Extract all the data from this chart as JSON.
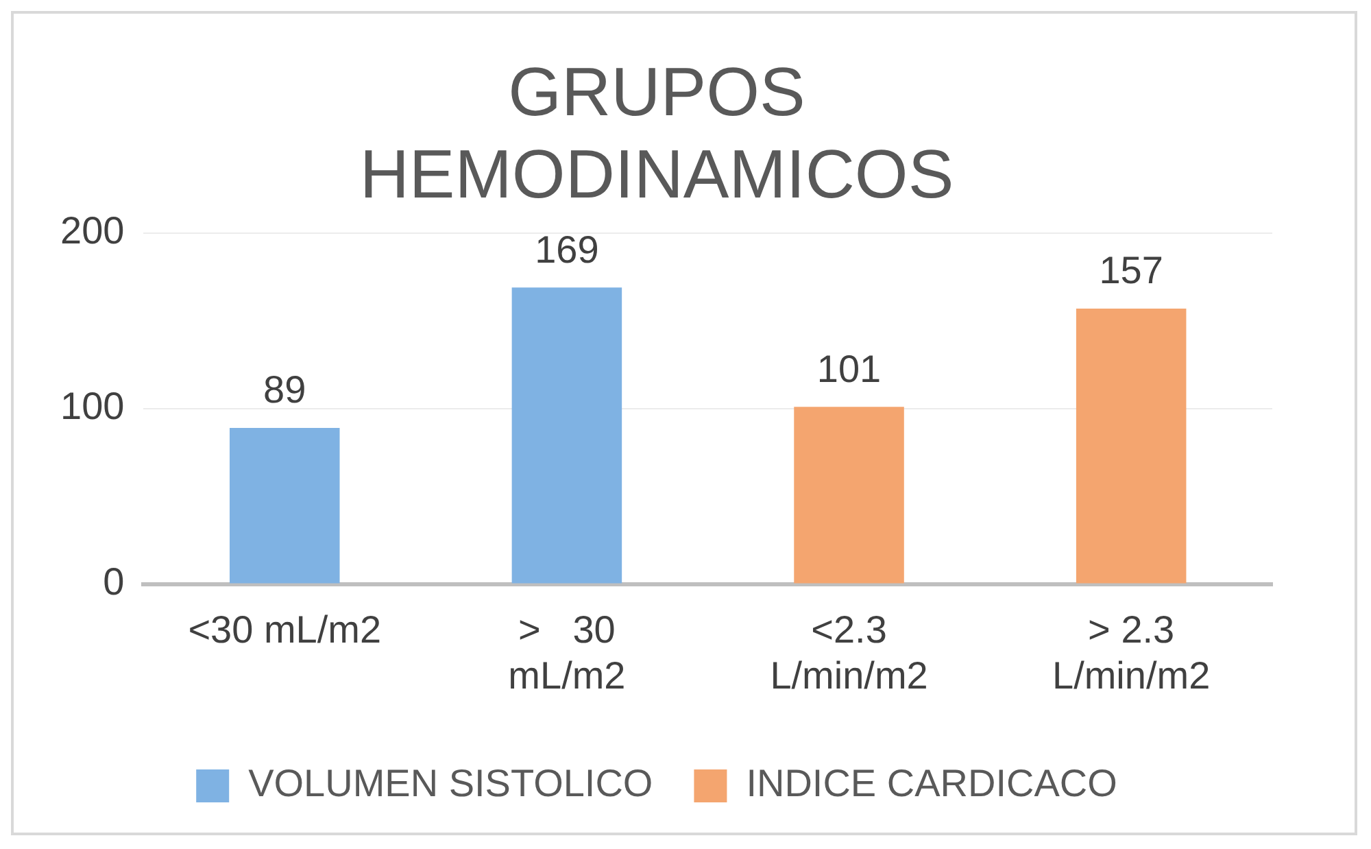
{
  "chart_data": {
    "type": "bar",
    "title": "GRUPOS HEMODINAMICOS",
    "categories": [
      "<30 mL/m2",
      ">   30 mL/m2",
      "<2.3 L/min/m2",
      "> 2.3 L/min/m2"
    ],
    "series": [
      {
        "name": "VOLUMEN SISTOLICO",
        "color": "#7fb2e3",
        "values": [
          89,
          169,
          null,
          null
        ]
      },
      {
        "name": "INDICE CARDICACO",
        "color": "#f4a56f",
        "values": [
          null,
          null,
          101,
          157
        ]
      }
    ],
    "ylim": [
      0,
      200
    ],
    "yticks": [
      0,
      100,
      200
    ],
    "grid": "y",
    "legend": "bottom",
    "data_labels": true
  }
}
